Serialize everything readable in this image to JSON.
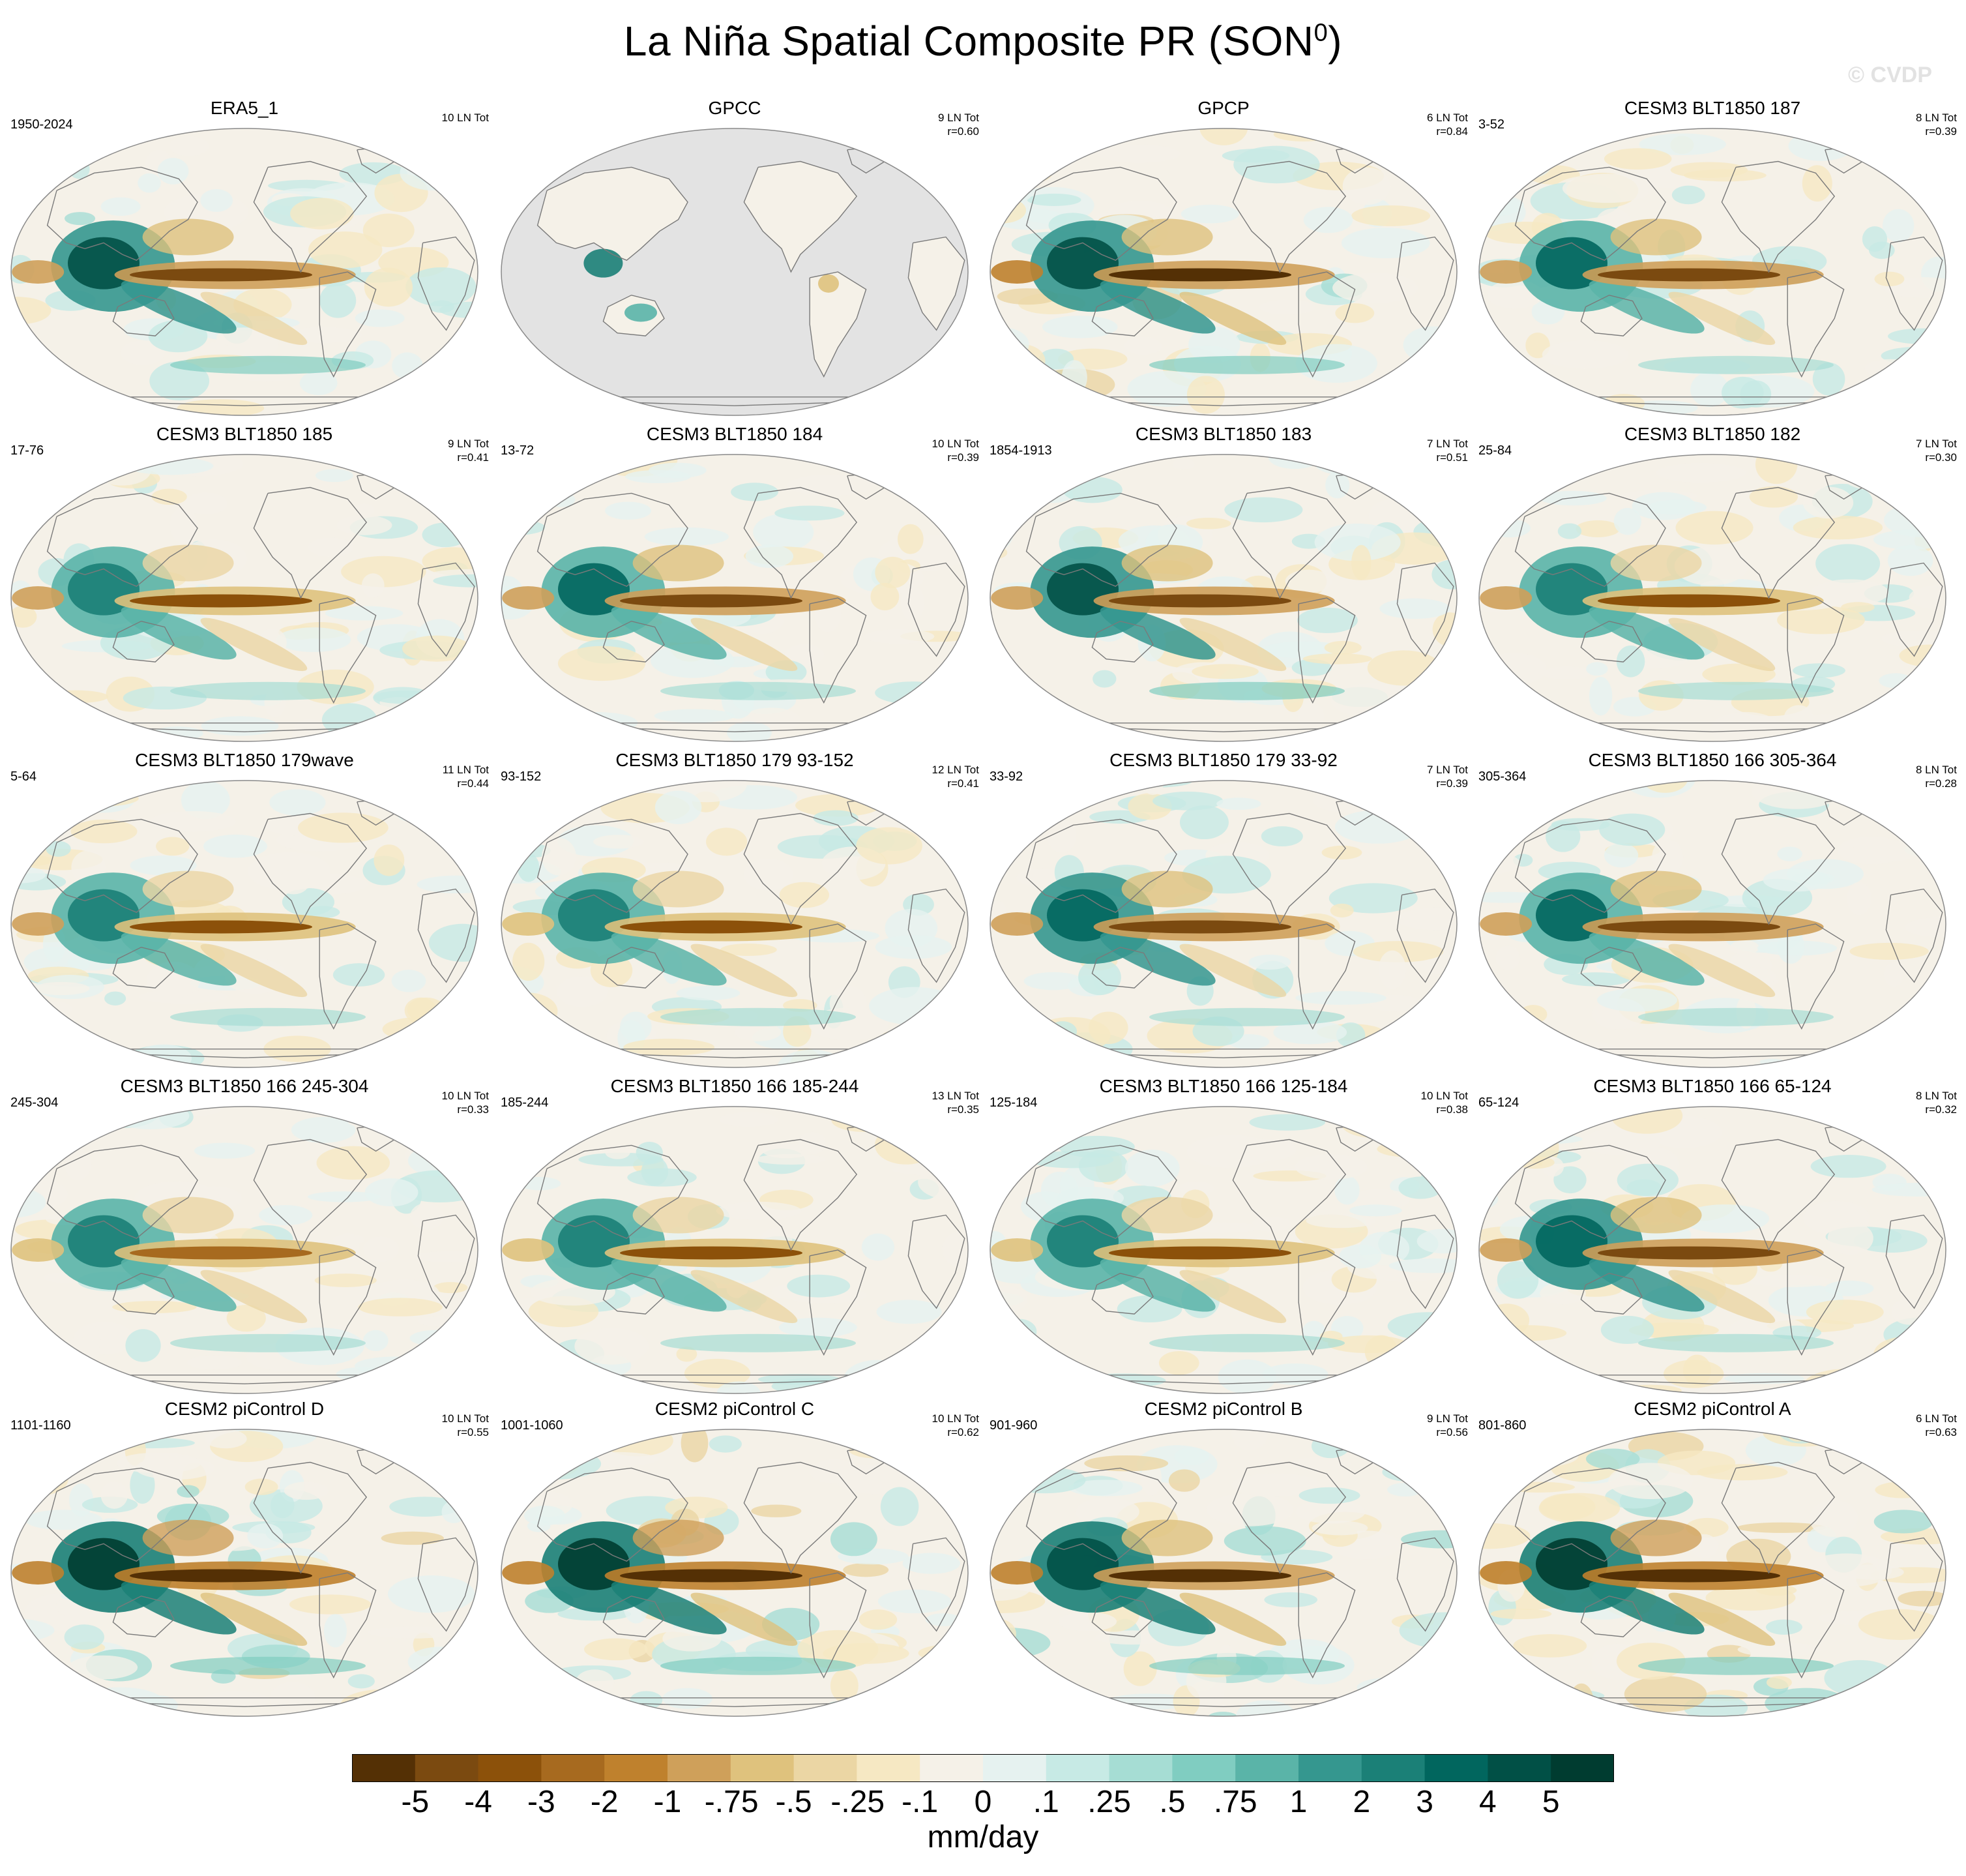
{
  "title": {
    "main": "La Niña Spatial Composite PR (SON",
    "sup": "0",
    "close": ")"
  },
  "watermark": "© CVDP",
  "units": "mm/day",
  "colors": {
    "land_mask": "#e3e3e3",
    "coast": "#7a7a7a",
    "palette": [
      "#543005",
      "#7b4a10",
      "#8c510a",
      "#a76a1f",
      "#bf812d",
      "#cfa05a",
      "#dfc27d",
      "#ebd6a4",
      "#f6e8c3",
      "#f5f1e8",
      "#e6f2f0",
      "#c7eae5",
      "#a6ddd4",
      "#80cdc1",
      "#5ab4a8",
      "#35978f",
      "#1b8077",
      "#01665e",
      "#015046",
      "#003c30"
    ]
  },
  "colorbar": {
    "labels": [
      "-5",
      "-4",
      "-3",
      "-2",
      "-1",
      "-.75",
      "-.5",
      "-.25",
      "-.1",
      "0",
      ".1",
      ".25",
      ".5",
      ".75",
      "1",
      "2",
      "3",
      "4",
      "5"
    ]
  },
  "panels": [
    {
      "name": "ERA5_1",
      "years": "1950-2024",
      "count": "10 LN Tot",
      "r": "",
      "masked": false,
      "strength": 1.0,
      "seed": 11
    },
    {
      "name": "GPCC",
      "years": "",
      "count": "9 LN Tot",
      "r": "r=0.60",
      "masked": true,
      "strength": 0.9,
      "seed": 12
    },
    {
      "name": "GPCP",
      "years": "",
      "count": "6 LN Tot",
      "r": "r=0.84",
      "masked": false,
      "strength": 1.05,
      "seed": 13
    },
    {
      "name": "CESM3 BLT1850 187",
      "years": "3-52",
      "count": "8 LN Tot",
      "r": "r=0.39",
      "masked": false,
      "strength": 0.9,
      "seed": 14
    },
    {
      "name": "CESM3 BLT1850 185",
      "years": "17-76",
      "count": "9 LN Tot",
      "r": "r=0.41",
      "masked": false,
      "strength": 0.85,
      "seed": 15
    },
    {
      "name": "CESM3 BLT1850 184",
      "years": "13-72",
      "count": "10 LN Tot",
      "r": "r=0.39",
      "masked": false,
      "strength": 0.9,
      "seed": 16
    },
    {
      "name": "CESM3 BLT1850 183",
      "years": "1854-1913",
      "count": "7 LN Tot",
      "r": "r=0.51",
      "masked": false,
      "strength": 1.0,
      "seed": 17
    },
    {
      "name": "CESM3 BLT1850 182",
      "years": "25-84",
      "count": "7 LN Tot",
      "r": "r=0.30",
      "masked": false,
      "strength": 0.85,
      "seed": 18
    },
    {
      "name": "CESM3 BLT1850 179wave",
      "years": "5-64",
      "count": "11 LN Tot",
      "r": "r=0.44",
      "masked": false,
      "strength": 0.85,
      "seed": 19
    },
    {
      "name": "CESM3 BLT1850 179 93-152",
      "years": "93-152",
      "count": "12 LN Tot",
      "r": "r=0.41",
      "masked": false,
      "strength": 0.8,
      "seed": 20
    },
    {
      "name": "CESM3 BLT1850 179 33-92",
      "years": "33-92",
      "count": "7 LN Tot",
      "r": "r=0.39",
      "masked": false,
      "strength": 0.95,
      "seed": 21
    },
    {
      "name": "CESM3 BLT1850 166 305-364",
      "years": "305-364",
      "count": "8 LN Tot",
      "r": "r=0.28",
      "masked": false,
      "strength": 0.9,
      "seed": 22
    },
    {
      "name": "CESM3 BLT1850 166 245-304",
      "years": "245-304",
      "count": "10 LN Tot",
      "r": "r=0.33",
      "masked": false,
      "strength": 0.75,
      "seed": 23
    },
    {
      "name": "CESM3 BLT1850 166 185-244",
      "years": "185-244",
      "count": "13 LN Tot",
      "r": "r=0.35",
      "masked": false,
      "strength": 0.8,
      "seed": 24
    },
    {
      "name": "CESM3 BLT1850 166 125-184",
      "years": "125-184",
      "count": "10 LN Tot",
      "r": "r=0.38",
      "masked": false,
      "strength": 0.8,
      "seed": 25
    },
    {
      "name": "CESM3 BLT1850 166 65-124",
      "years": "65-124",
      "count": "8 LN Tot",
      "r": "r=0.32",
      "masked": false,
      "strength": 0.95,
      "seed": 26
    },
    {
      "name": "CESM2 piControl D",
      "years": "1101-1160",
      "count": "10 LN Tot",
      "r": "r=0.55",
      "masked": false,
      "strength": 1.15,
      "seed": 27
    },
    {
      "name": "CESM2 piControl C",
      "years": "1001-1060",
      "count": "10 LN Tot",
      "r": "r=0.62",
      "masked": false,
      "strength": 1.15,
      "seed": 28
    },
    {
      "name": "CESM2 piControl B",
      "years": "901-960",
      "count": "9 LN Tot",
      "r": "r=0.56",
      "masked": false,
      "strength": 1.1,
      "seed": 29
    },
    {
      "name": "CESM2 piControl A",
      "years": "801-860",
      "count": "6 LN Tot",
      "r": "r=0.63",
      "masked": false,
      "strength": 1.2,
      "seed": 30
    }
  ]
}
